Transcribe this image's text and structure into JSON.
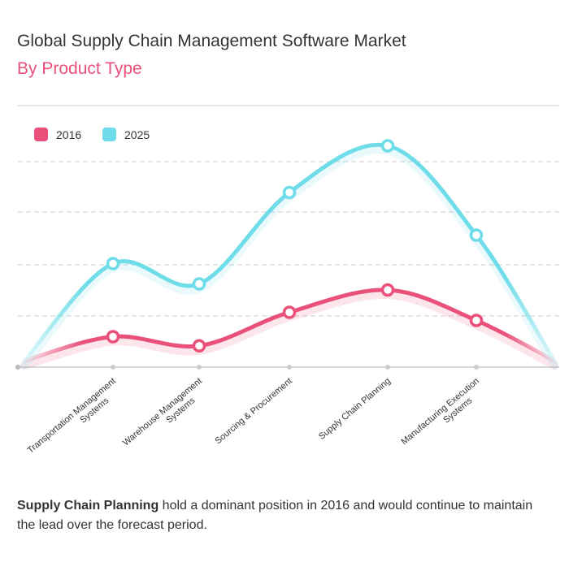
{
  "header": {
    "title": "Global Supply Chain Management Software Market",
    "subtitle": "By Product Type"
  },
  "footnote": {
    "highlight": "Supply Chain Planning",
    "text": " hold a dominant position in 2016 and would continue to maintain the lead over the forecast period."
  },
  "colors": {
    "accent": "#e9507a",
    "series_2016": "#e9507a",
    "series_2025": "#6fdde9",
    "gridline": "#cccccc",
    "axis": "#cccccc"
  },
  "chart_data": {
    "type": "line",
    "smooth": true,
    "title": "Global Supply Chain Management Software Market",
    "subtitle": "By Product Type",
    "xlabel": "",
    "ylabel": "",
    "ylim": [
      0,
      100
    ],
    "grid": true,
    "legend": "top-left",
    "categories": [
      "Transportation Management Systems",
      "Warehouse Management Systems",
      "Sourcing & Procurement",
      "Supply Chain Planning",
      "Manufacturing Execution Systems"
    ],
    "series": [
      {
        "name": "2016",
        "color": "#e9507a",
        "values": [
          15,
          10.5,
          27,
          38,
          23
        ]
      },
      {
        "name": "2025",
        "color": "#6fdde9",
        "values": [
          51,
          41,
          86,
          109,
          65
        ]
      }
    ]
  }
}
